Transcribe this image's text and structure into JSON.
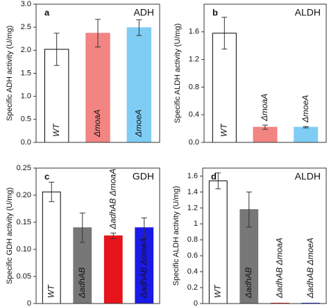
{
  "chart_data": [
    {
      "type": "bar",
      "panel": "a",
      "title": "ADH",
      "y_label": "Specific ADH activity (U/mg)",
      "categories": [
        "WT",
        "ΔmoaA",
        "ΔmoeA"
      ],
      "values": [
        2.02,
        2.37,
        2.49
      ],
      "errors": [
        0.35,
        0.3,
        0.17
      ],
      "colors": [
        "#ffffff",
        "#f28482",
        "#7fcdf5"
      ],
      "label_colors": [
        "#000000",
        "#ffffff",
        "#ffffff"
      ],
      "ylim": [
        0,
        3.0
      ],
      "yticks": [
        {
          "value": 0,
          "label": "0.0"
        },
        0.5,
        {
          "value": 1,
          "label": "1.0"
        },
        1.5,
        {
          "value": 2,
          "label": "2.0"
        },
        2.5,
        {
          "value": 3,
          "label": "3.0"
        }
      ]
    },
    {
      "type": "bar",
      "panel": "b",
      "title": "ALDH",
      "y_label": "Specific ALDH activity (U/mg)",
      "categories": [
        "WT",
        "ΔmoaA",
        "ΔmoeA"
      ],
      "values": [
        1.58,
        0.22,
        0.22
      ],
      "errors": [
        0.23,
        0.03,
        0.01
      ],
      "colors": [
        "#ffffff",
        "#f28482",
        "#7fcdf5"
      ],
      "label_colors": [
        "#000000",
        "#f28482",
        "#7fcdf5"
      ],
      "ylim": [
        0,
        2.0
      ],
      "yticks": [
        {
          "value": 0,
          "label": "0.0"
        },
        0.4,
        0.8,
        1.2,
        1.6
      ]
    },
    {
      "type": "bar",
      "panel": "c",
      "title": "GDH",
      "y_label": "Specific GDH activity (U/mg)",
      "categories": [
        "WT",
        "ΔadhAB",
        "ΔadhAB ΔmoaA",
        "ΔadhAB ΔmoeA"
      ],
      "values": [
        0.206,
        0.14,
        0.125,
        0.14
      ],
      "errors": [
        0.018,
        0.027,
        0.005,
        0.018
      ],
      "colors": [
        "#ffffff",
        "#777777",
        "#e8141b",
        "#1a1ae6"
      ],
      "label_colors": [
        "#000000",
        "#ffffff",
        "#ffffff",
        "#ffffff"
      ],
      "ylim": [
        0,
        0.25
      ],
      "yticks": [
        0,
        0.05,
        {
          "value": 0.1,
          "label": "0.10"
        },
        0.15,
        {
          "value": 0.2,
          "label": "0.20"
        },
        0.25
      ]
    },
    {
      "type": "bar",
      "panel": "d",
      "title": "ALDH",
      "y_label": "Specific ALDH activity (U/mg)",
      "categories": [
        "WT",
        "ΔadhAB",
        "ΔadhAB ΔmoaA",
        "ΔadhAB ΔmoeA"
      ],
      "values": [
        1.54,
        1.18,
        0.005,
        0.005
      ],
      "errors": [
        0.1,
        0.22,
        0,
        0
      ],
      "colors": [
        "#ffffff",
        "#777777",
        "#e8141b",
        "#1a1ae6"
      ],
      "label_colors": [
        "#000000",
        "#ffffff",
        "#e8141b",
        "#1a1ae6"
      ],
      "ylim": [
        0,
        1.7
      ],
      "yticks": [
        0,
        0.2,
        0.4,
        0.6,
        0.8,
        1,
        1.2,
        1.4,
        1.6
      ]
    }
  ]
}
